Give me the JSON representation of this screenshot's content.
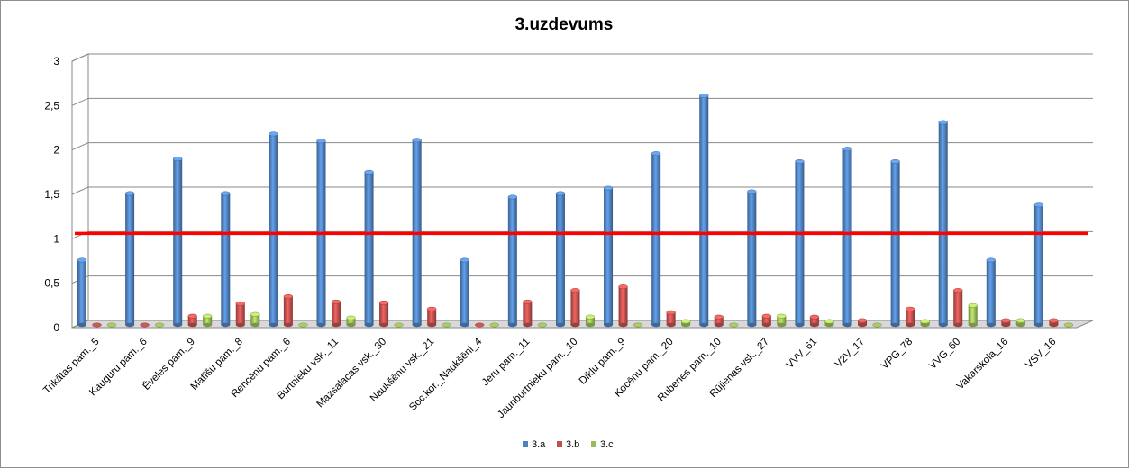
{
  "chart_data": {
    "type": "bar",
    "title": "3.uzdevums",
    "xlabel": "",
    "ylabel": "",
    "ylim": [
      0,
      3
    ],
    "yticks": [
      "0",
      "0,5",
      "1",
      "1,5",
      "2",
      "2,5",
      "3"
    ],
    "grid": true,
    "legend": "bottom",
    "categories": [
      "Trikātas pam._5",
      "Kauguru pam._6",
      "Ēveles pam._9",
      "Matīšu pam._8",
      "Rencēnu pam._6",
      "Burtnieku vsk._11",
      "Mazsalacas vsk._30",
      "Naukšēnu vsk._21",
      "Soc.kor._Naukšēni_4",
      "Jeru pam._11",
      "Jaunburtnieku pam._10",
      "Dikļu pam._9",
      "Kocēnu pam._20",
      "Rubenes pam._10",
      "Rūjienas vsk._27",
      "VVV_61",
      "V2V_17",
      "VPG_78",
      "VVG_60",
      "Vakarskola_16",
      "VSV_16"
    ],
    "series": [
      {
        "name": "3.a",
        "color": "#4f81bd",
        "values": [
          0.73,
          1.48,
          1.87,
          1.48,
          2.15,
          2.07,
          1.72,
          2.08,
          0.73,
          1.44,
          1.48,
          1.54,
          1.93,
          2.58,
          1.5,
          1.84,
          1.98,
          1.84,
          2.28,
          0.73,
          1.35
        ]
      },
      {
        "name": "3.b",
        "color": "#c0504d",
        "values": [
          0,
          0,
          0.1,
          0.24,
          0.32,
          0.26,
          0.25,
          0.18,
          0,
          0.26,
          0.39,
          0.43,
          0.14,
          0.09,
          0.1,
          0.09,
          0.05,
          0.18,
          0.39,
          0.05,
          0.05
        ]
      },
      {
        "name": "3.c",
        "color": "#9bbb59",
        "values": [
          0,
          0,
          0.1,
          0.12,
          0,
          0.08,
          0,
          0,
          0,
          0,
          0.09,
          0,
          0.04,
          0,
          0.1,
          0.04,
          0,
          0.04,
          0.22,
          0.05,
          0
        ]
      }
    ],
    "reference_line": {
      "value": 1.0,
      "color": "#ff0000"
    }
  }
}
